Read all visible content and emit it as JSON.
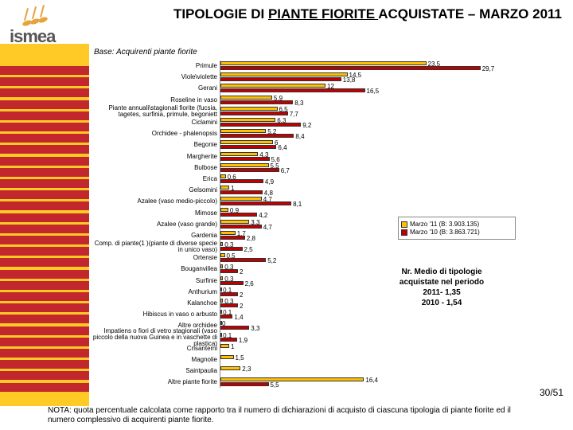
{
  "logo_text": "ismea",
  "title_pre": "TIPOLOGIE DI ",
  "title_u": "PIANTE FIORITE ",
  "title_post": "ACQUISTATE – MARZO 2011",
  "base": "Base: Acquirenti piante fiorite",
  "chart": {
    "type": "bar-horizontal-grouped",
    "xmax": 30,
    "series": [
      {
        "name": "Marzo '11 (B: 3.903.135)",
        "color": "#ffc000"
      },
      {
        "name": "Marzo '10 (B: 3.863.721)",
        "color": "#c00000"
      }
    ],
    "categories": [
      {
        "label": "Primule",
        "v": [
          23.5,
          29.7
        ]
      },
      {
        "label": "Viole\\violette",
        "v": [
          14.5,
          13.8
        ]
      },
      {
        "label": "Gerani",
        "v": [
          12.0,
          16.5
        ]
      },
      {
        "label": "Roseline in vaso",
        "v": [
          5.9,
          8.3
        ]
      },
      {
        "label": "Piante annuali\\stagionali fiorite (fucsia, tagetes, surfinia, primule, begoniett",
        "v": [
          6.5,
          7.7
        ]
      },
      {
        "label": "Ciclamini",
        "v": [
          6.3,
          9.2
        ]
      },
      {
        "label": "Orchidee - phalenopsis",
        "v": [
          5.2,
          8.4
        ]
      },
      {
        "label": "Begonie",
        "v": [
          6.0,
          6.4
        ]
      },
      {
        "label": "Margherite",
        "v": [
          4.3,
          5.6
        ]
      },
      {
        "label": "Bulbose",
        "v": [
          5.5,
          6.7
        ]
      },
      {
        "label": "Erica",
        "v": [
          0.6,
          4.9
        ]
      },
      {
        "label": "Gelsomini",
        "v": [
          1,
          4.8
        ]
      },
      {
        "label": "Azalee (vaso medio-piccolo)",
        "v": [
          4.7,
          8.1
        ]
      },
      {
        "label": "Mimose",
        "v": [
          0.9,
          4.2
        ]
      },
      {
        "label": "Azalee (vaso grande)",
        "v": [
          3.3,
          4.7
        ]
      },
      {
        "label": "Gardenia",
        "v": [
          1.7,
          2.8
        ]
      },
      {
        "label": "Comp. di piante(1 )(piante di diverse specie in unico vaso)",
        "v": [
          0.3,
          2.5
        ]
      },
      {
        "label": "Ortensie",
        "v": [
          0.5,
          5.2
        ]
      },
      {
        "label": "Bouganvillea",
        "v": [
          0.3,
          2.0
        ]
      },
      {
        "label": "Surfinie",
        "v": [
          0.3,
          2.6
        ]
      },
      {
        "label": "Anthurium",
        "v": [
          0.1,
          2
        ]
      },
      {
        "label": "Kalanchoe",
        "v": [
          0.3,
          2
        ]
      },
      {
        "label": "Hibiscus in vaso o arbusto",
        "v": [
          0.1,
          1.4
        ]
      },
      {
        "label": "Altre orchidee",
        "v": [
          0,
          3.3
        ]
      },
      {
        "label": "Impatiens o fiori di vetro stagionali (vaso piccolo della nuova Guinea e in vaschette di plastica)",
        "v": [
          0.1,
          1.9
        ]
      },
      {
        "label": "Crisantemi",
        "v": [
          1,
          null
        ]
      },
      {
        "label": "Magnolie",
        "v": [
          1.5,
          null
        ]
      },
      {
        "label": "Saintpaulia",
        "v": [
          2.3,
          null
        ]
      },
      {
        "label": "Altre piante fiorite",
        "v": [
          16.4,
          5.5
        ]
      }
    ]
  },
  "info": "Nr. Medio di tipologie acquistate nel periodo\n2011- 1,35\n2010 - 1,54",
  "page": "30/51",
  "note": "NOTA: quota percentuale calcolata come rapporto tra il numero di dichiarazioni di acquisto di ciascuna tipologia di piante fiorite ed il numero complessivo di acquirenti piante fiorite.",
  "colors": {
    "yellow_bar": "#ffc926",
    "red_stripe": "#c1272d",
    "bg": "#ffffff",
    "logo_orange": "#e8a33d"
  }
}
